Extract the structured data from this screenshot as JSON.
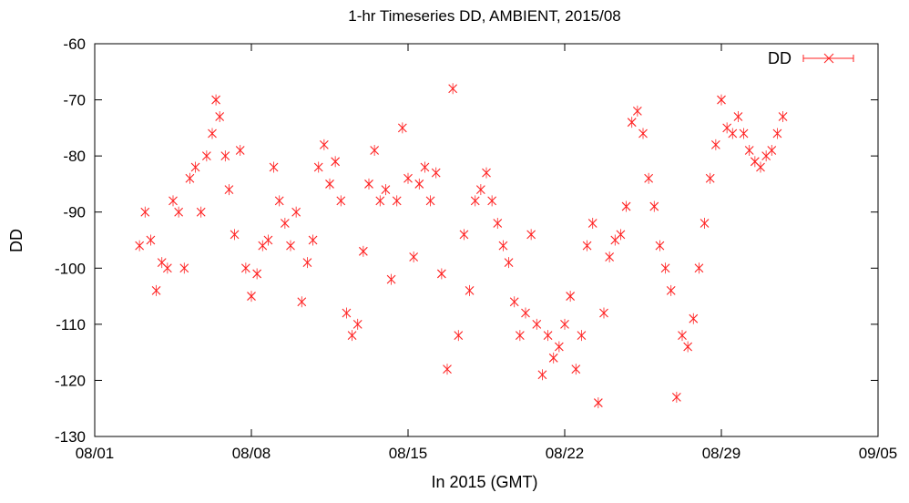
{
  "chart_data": {
    "type": "scatter",
    "title": "1-hr Timeseries DD, AMBIENT, 2015/08",
    "xlabel": "In 2015 (GMT)",
    "ylabel": "DD",
    "xlim": [
      "2015-08-01",
      "2015-09-05"
    ],
    "ylim": [
      -130,
      -60
    ],
    "x_ticks": [
      {
        "date": "2015-08-01",
        "label": "08/01"
      },
      {
        "date": "2015-08-08",
        "label": "08/08"
      },
      {
        "date": "2015-08-15",
        "label": "08/15"
      },
      {
        "date": "2015-08-22",
        "label": "08/22"
      },
      {
        "date": "2015-08-29",
        "label": "08/29"
      },
      {
        "date": "2015-09-05",
        "label": "09/05"
      }
    ],
    "y_ticks": [
      -60,
      -70,
      -80,
      -90,
      -100,
      -110,
      -120,
      -130
    ],
    "grid": false,
    "legend_position": "top-right",
    "color": "#ff2020",
    "marker": "x",
    "error_bars": true,
    "series": [
      {
        "name": "DD",
        "points": [
          [
            "2015-08-03T00:00",
            -96
          ],
          [
            "2015-08-03T06:00",
            -90
          ],
          [
            "2015-08-03T12:00",
            -95
          ],
          [
            "2015-08-03T18:00",
            -104
          ],
          [
            "2015-08-04T00:00",
            -99
          ],
          [
            "2015-08-04T06:00",
            -100
          ],
          [
            "2015-08-04T12:00",
            -88
          ],
          [
            "2015-08-04T18:00",
            -90
          ],
          [
            "2015-08-05T00:00",
            -100
          ],
          [
            "2015-08-05T06:00",
            -84
          ],
          [
            "2015-08-05T12:00",
            -82
          ],
          [
            "2015-08-05T18:00",
            -90
          ],
          [
            "2015-08-06T00:00",
            -80
          ],
          [
            "2015-08-06T06:00",
            -76
          ],
          [
            "2015-08-06T10:00",
            -70
          ],
          [
            "2015-08-06T14:00",
            -73
          ],
          [
            "2015-08-06T20:00",
            -80
          ],
          [
            "2015-08-07T00:00",
            -86
          ],
          [
            "2015-08-07T06:00",
            -94
          ],
          [
            "2015-08-07T12:00",
            -79
          ],
          [
            "2015-08-07T18:00",
            -100
          ],
          [
            "2015-08-08T00:00",
            -105
          ],
          [
            "2015-08-08T06:00",
            -101
          ],
          [
            "2015-08-08T12:00",
            -96
          ],
          [
            "2015-08-08T18:00",
            -95
          ],
          [
            "2015-08-09T00:00",
            -82
          ],
          [
            "2015-08-09T06:00",
            -88
          ],
          [
            "2015-08-09T12:00",
            -92
          ],
          [
            "2015-08-09T18:00",
            -96
          ],
          [
            "2015-08-10T00:00",
            -90
          ],
          [
            "2015-08-10T06:00",
            -106
          ],
          [
            "2015-08-10T12:00",
            -99
          ],
          [
            "2015-08-10T18:00",
            -95
          ],
          [
            "2015-08-11T00:00",
            -82
          ],
          [
            "2015-08-11T06:00",
            -78
          ],
          [
            "2015-08-11T12:00",
            -85
          ],
          [
            "2015-08-11T18:00",
            -81
          ],
          [
            "2015-08-12T00:00",
            -88
          ],
          [
            "2015-08-12T06:00",
            -108
          ],
          [
            "2015-08-12T12:00",
            -112
          ],
          [
            "2015-08-12T18:00",
            -110
          ],
          [
            "2015-08-13T00:00",
            -97
          ],
          [
            "2015-08-13T06:00",
            -85
          ],
          [
            "2015-08-13T12:00",
            -79
          ],
          [
            "2015-08-13T18:00",
            -88
          ],
          [
            "2015-08-14T00:00",
            -86
          ],
          [
            "2015-08-14T06:00",
            -102
          ],
          [
            "2015-08-14T12:00",
            -88
          ],
          [
            "2015-08-14T18:00",
            -75
          ],
          [
            "2015-08-15T00:00",
            -84
          ],
          [
            "2015-08-15T06:00",
            -98
          ],
          [
            "2015-08-15T12:00",
            -85
          ],
          [
            "2015-08-15T18:00",
            -82
          ],
          [
            "2015-08-16T00:00",
            -88
          ],
          [
            "2015-08-16T06:00",
            -83
          ],
          [
            "2015-08-16T12:00",
            -101
          ],
          [
            "2015-08-16T18:00",
            -118
          ],
          [
            "2015-08-17T00:00",
            -68
          ],
          [
            "2015-08-17T06:00",
            -112
          ],
          [
            "2015-08-17T12:00",
            -94
          ],
          [
            "2015-08-17T18:00",
            -104
          ],
          [
            "2015-08-18T00:00",
            -88
          ],
          [
            "2015-08-18T06:00",
            -86
          ],
          [
            "2015-08-18T12:00",
            -83
          ],
          [
            "2015-08-18T18:00",
            -88
          ],
          [
            "2015-08-19T00:00",
            -92
          ],
          [
            "2015-08-19T06:00",
            -96
          ],
          [
            "2015-08-19T12:00",
            -99
          ],
          [
            "2015-08-19T18:00",
            -106
          ],
          [
            "2015-08-20T00:00",
            -112
          ],
          [
            "2015-08-20T06:00",
            -108
          ],
          [
            "2015-08-20T12:00",
            -94
          ],
          [
            "2015-08-20T18:00",
            -110
          ],
          [
            "2015-08-21T00:00",
            -119
          ],
          [
            "2015-08-21T06:00",
            -112
          ],
          [
            "2015-08-21T12:00",
            -116
          ],
          [
            "2015-08-21T18:00",
            -114
          ],
          [
            "2015-08-22T00:00",
            -110
          ],
          [
            "2015-08-22T06:00",
            -105
          ],
          [
            "2015-08-22T12:00",
            -118
          ],
          [
            "2015-08-22T18:00",
            -112
          ],
          [
            "2015-08-23T00:00",
            -96
          ],
          [
            "2015-08-23T06:00",
            -92
          ],
          [
            "2015-08-23T12:00",
            -124
          ],
          [
            "2015-08-23T18:00",
            -108
          ],
          [
            "2015-08-24T00:00",
            -98
          ],
          [
            "2015-08-24T06:00",
            -95
          ],
          [
            "2015-08-24T12:00",
            -94
          ],
          [
            "2015-08-24T18:00",
            -89
          ],
          [
            "2015-08-25T00:00",
            -74
          ],
          [
            "2015-08-25T06:00",
            -72
          ],
          [
            "2015-08-25T12:00",
            -76
          ],
          [
            "2015-08-25T18:00",
            -84
          ],
          [
            "2015-08-26T00:00",
            -89
          ],
          [
            "2015-08-26T06:00",
            -96
          ],
          [
            "2015-08-26T12:00",
            -100
          ],
          [
            "2015-08-26T18:00",
            -104
          ],
          [
            "2015-08-27T00:00",
            -123
          ],
          [
            "2015-08-27T06:00",
            -112
          ],
          [
            "2015-08-27T12:00",
            -114
          ],
          [
            "2015-08-27T18:00",
            -109
          ],
          [
            "2015-08-28T00:00",
            -100
          ],
          [
            "2015-08-28T06:00",
            -92
          ],
          [
            "2015-08-28T12:00",
            -84
          ],
          [
            "2015-08-28T18:00",
            -78
          ],
          [
            "2015-08-29T00:00",
            -70
          ],
          [
            "2015-08-29T06:00",
            -75
          ],
          [
            "2015-08-29T12:00",
            -76
          ],
          [
            "2015-08-29T18:00",
            -73
          ],
          [
            "2015-08-30T00:00",
            -76
          ],
          [
            "2015-08-30T06:00",
            -79
          ],
          [
            "2015-08-30T12:00",
            -81
          ],
          [
            "2015-08-30T18:00",
            -82
          ],
          [
            "2015-08-31T00:00",
            -80
          ],
          [
            "2015-08-31T06:00",
            -79
          ],
          [
            "2015-08-31T12:00",
            -76
          ],
          [
            "2015-08-31T18:00",
            -73
          ]
        ]
      }
    ]
  }
}
